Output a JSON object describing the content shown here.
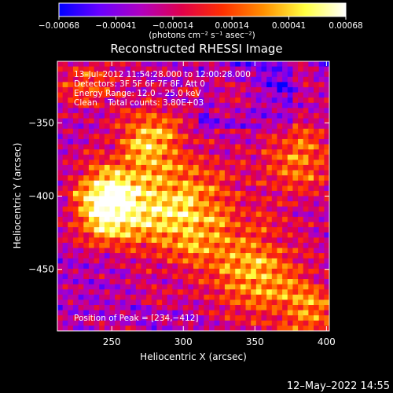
{
  "chart_data": {
    "type": "heatmap",
    "title": "Reconstructed RHESSI Image",
    "xlabel": "Heliocentric X (arcsec)",
    "ylabel": "Heliocentric Y (arcsec)",
    "xlim": [
      212,
      402
    ],
    "ylim": [
      -492,
      -308
    ],
    "x_ticks": [
      250,
      300,
      350,
      400
    ],
    "y_ticks": [
      -350,
      -400,
      -450
    ],
    "x_tick_labels": [
      "250",
      "300",
      "350",
      "400"
    ],
    "y_tick_labels": [
      "−350",
      "−400",
      "−450"
    ],
    "colorbar": {
      "range": [
        -0.00068,
        0.00068
      ],
      "tick_values": [
        -0.00068,
        -0.00041,
        -0.00014,
        0.00014,
        0.00041,
        0.00068
      ],
      "tick_labels": [
        "−0.00068",
        "−0.00041",
        "−0.00014",
        "0.00014",
        "0.00041",
        "0.00068"
      ],
      "units_label": "(photons cm⁻² s⁻¹ asec⁻²)",
      "colors": [
        "#0000ff",
        "#6a00ff",
        "#b000c0",
        "#e0004a",
        "#ff3000",
        "#ff9000",
        "#ffff40",
        "#ffffff"
      ]
    },
    "annotations": [
      "13–Jul–2012 11:54:28.000 to 12:00:28.000",
      "Detectors: 3F 5F 6F 7F 8F, Att 0",
      "Energy Range: 12.0 – 25.0 keV",
      "Clean    Total counts: 3.80E+03"
    ],
    "peak_label": "Position of Peak = [234,−412]",
    "peak": [
      234,
      -412
    ],
    "timestamp": "12–May–2022 14:55"
  }
}
